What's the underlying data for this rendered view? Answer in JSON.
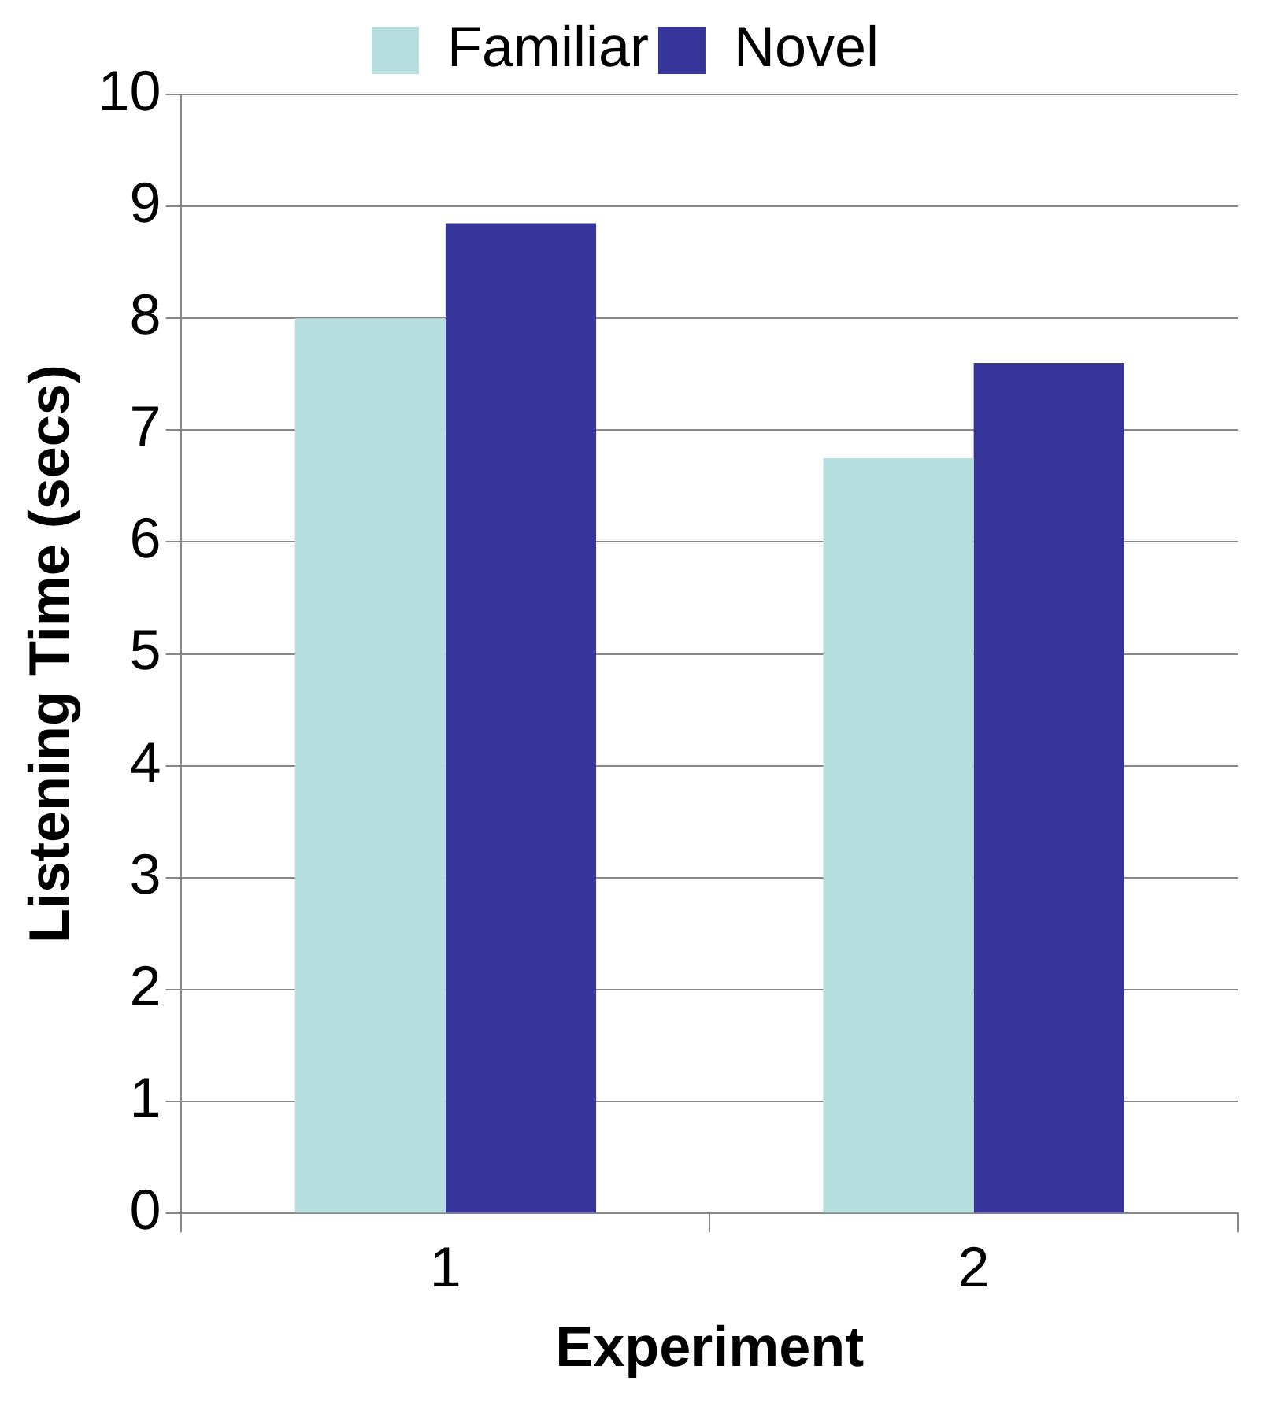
{
  "chart_data": {
    "type": "bar",
    "xlabel": "Experiment",
    "ylabel": "Listening Time (secs)",
    "categories": [
      "1",
      "2"
    ],
    "series": [
      {
        "name": "Familiar",
        "color": "#b7dfe0",
        "values": [
          8.0,
          6.75
        ]
      },
      {
        "name": "Novel",
        "color": "#35359a",
        "values": [
          8.85,
          7.6
        ]
      }
    ],
    "ylim": [
      0,
      10
    ],
    "yticks": [
      0,
      1,
      2,
      3,
      4,
      5,
      6,
      7,
      8,
      9,
      10
    ],
    "grid": "y",
    "legend": "top"
  }
}
